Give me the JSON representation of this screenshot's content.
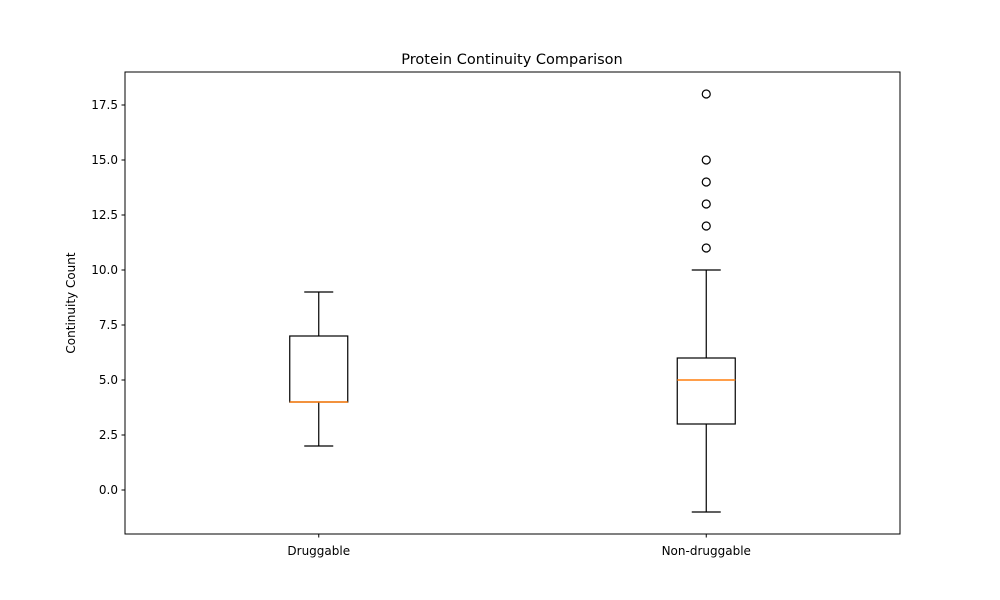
{
  "chart_data": {
    "type": "box",
    "title": "Protein Continuity Comparison",
    "xlabel": "",
    "ylabel": "Continuity Count",
    "ylim": [
      -2.0,
      19.0
    ],
    "yticks": [
      0.0,
      2.5,
      5.0,
      7.5,
      10.0,
      12.5,
      15.0,
      17.5
    ],
    "ytick_labels": [
      "0.0",
      "2.5",
      "5.0",
      "7.5",
      "10.0",
      "12.5",
      "15.0",
      "17.5"
    ],
    "grid": false,
    "legend": "none",
    "categories": [
      "Druggable",
      "Non-druggable"
    ],
    "boxes": [
      {
        "category": "Druggable",
        "whisker_low": 2,
        "q1": 4,
        "median": 4,
        "q3": 7,
        "whisker_high": 9,
        "outliers": []
      },
      {
        "category": "Non-druggable",
        "whisker_low": -1,
        "q1": 3,
        "median": 5,
        "q3": 6,
        "whisker_high": 10,
        "outliers": [
          11,
          12,
          13,
          14,
          15,
          18
        ]
      }
    ],
    "colors": {
      "box": "#000000",
      "median": "#ff7f0e",
      "background": "#ffffff"
    }
  }
}
